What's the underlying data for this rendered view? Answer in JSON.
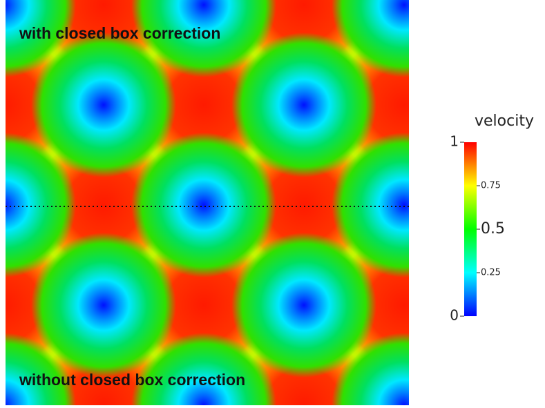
{
  "top_label": "with closed box correction",
  "bottom_label": "without closed box correction",
  "colorbar": {
    "title": "velocity",
    "lim": [
      0,
      1
    ],
    "ticks": [
      0,
      0.25,
      0.5,
      0.75,
      1
    ]
  }
}
